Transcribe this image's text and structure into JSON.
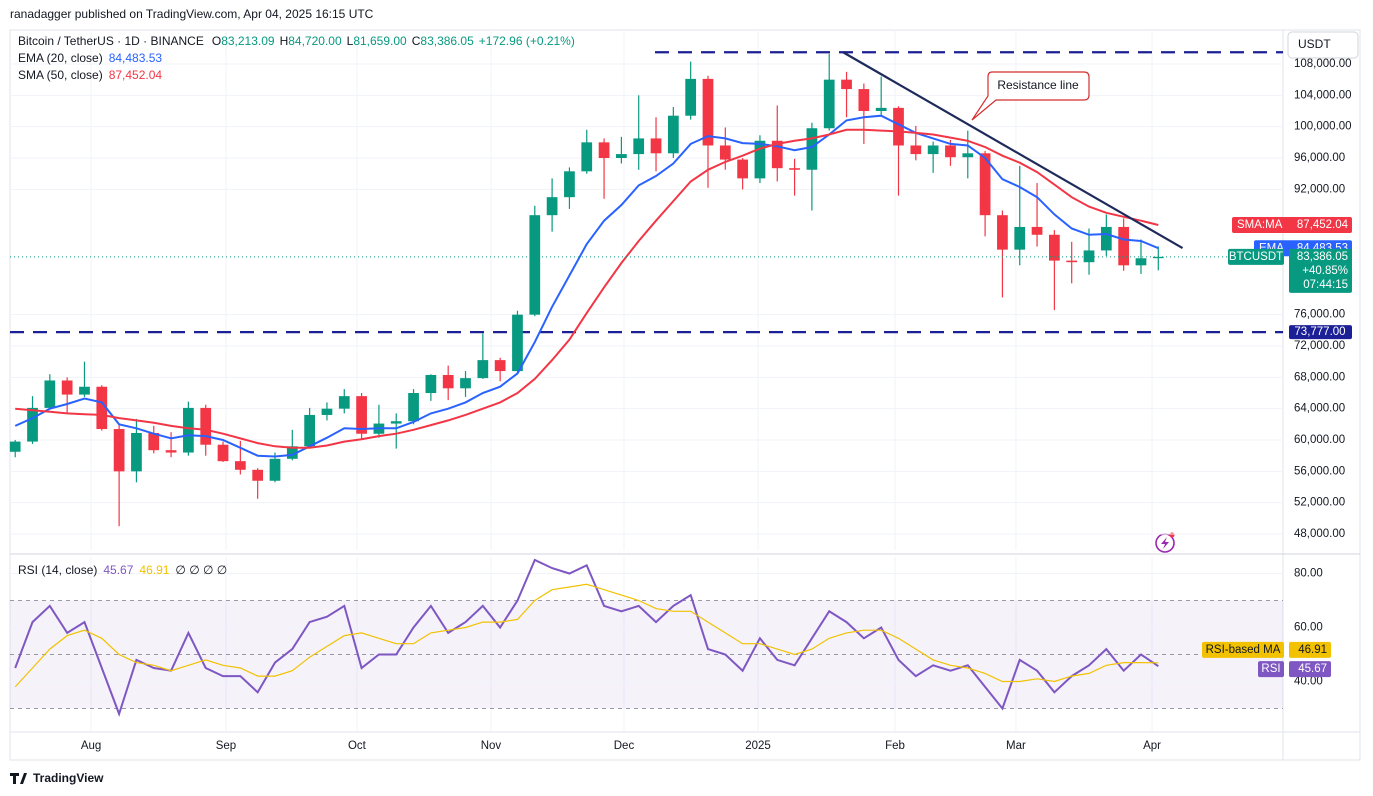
{
  "attribution": "ranadagger published on TradingView.com, Apr 04, 2025 16:15 UTC",
  "footer": {
    "brand": "TradingView"
  },
  "chart_data": [
    {
      "type": "candlestick",
      "title": "Bitcoin / TetherUS · 1D · BINANCE",
      "ohlc": [
        {
          "key": "O",
          "value": "83,213.09"
        },
        {
          "key": "H",
          "value": "84,720.00"
        },
        {
          "key": "L",
          "value": "81,659.00"
        },
        {
          "key": "C",
          "value": "83,386.05"
        }
      ],
      "change": "+172.96 (+0.21%)",
      "currency": "USDT",
      "colors": {
        "up": "#089981",
        "down": "#f23645"
      },
      "open": [
        58500,
        59800,
        64100,
        67600,
        65800,
        66800,
        61400,
        56000,
        60900,
        58700,
        58400,
        64100,
        59400,
        57300,
        56200,
        54800,
        57600,
        59200,
        63200,
        64000,
        65600,
        60800,
        62100,
        62400,
        66000,
        68300,
        66600,
        67900,
        70200,
        68800,
        76000,
        88700,
        91000,
        94300,
        98000,
        96000,
        96500,
        98500,
        96600,
        101400,
        106100,
        97600,
        95800,
        93400,
        98200,
        94700,
        94500,
        99800,
        106000,
        104800,
        102000,
        102400,
        97600,
        96500,
        97600,
        96100,
        96600,
        88700,
        84300,
        87200,
        86200,
        82900,
        82700,
        84200,
        87200,
        82300,
        83213.09
      ],
      "high": [
        60000,
        65600,
        68400,
        68000,
        70000,
        67000,
        62000,
        62700,
        61800,
        61000,
        64900,
        64500,
        59800,
        59900,
        56400,
        58400,
        61300,
        64100,
        64800,
        66500,
        66000,
        64500,
        63400,
        66500,
        68400,
        69500,
        68800,
        73600,
        70500,
        76500,
        89900,
        93400,
        94800,
        99600,
        98500,
        98700,
        104000,
        101200,
        102500,
        108300,
        106500,
        99900,
        96000,
        98900,
        102700,
        95900,
        100500,
        109300,
        107000,
        105500,
        106400,
        102600,
        100100,
        98100,
        98300,
        99500,
        96900,
        89300,
        95000,
        92800,
        86800,
        85300,
        87000,
        88800,
        88300,
        85600,
        84720
      ],
      "low": [
        57800,
        59500,
        63900,
        63500,
        65500,
        61200,
        49000,
        54600,
        58300,
        57800,
        58000,
        58000,
        57200,
        55600,
        52500,
        54600,
        57400,
        59000,
        62500,
        63400,
        60100,
        60300,
        58900,
        62000,
        65000,
        65100,
        65500,
        67800,
        67500,
        68500,
        75800,
        86600,
        89500,
        94000,
        90800,
        95300,
        94500,
        94300,
        96000,
        100900,
        92200,
        94500,
        92000,
        92800,
        93000,
        91200,
        89300,
        99500,
        101200,
        97800,
        101400,
        91200,
        95700,
        94100,
        95000,
        93400,
        86000,
        78200,
        82300,
        84700,
        76600,
        80000,
        81100,
        83500,
        81600,
        81200,
        81659
      ],
      "close": [
        59800,
        64100,
        67600,
        65800,
        66800,
        61400,
        56000,
        60900,
        58700,
        58400,
        64100,
        59400,
        57300,
        56200,
        54800,
        57600,
        59200,
        63200,
        64000,
        65600,
        60800,
        62100,
        62400,
        66000,
        68300,
        66600,
        67900,
        70200,
        68800,
        76000,
        88700,
        91000,
        94300,
        98000,
        96000,
        96500,
        98500,
        96600,
        101400,
        106100,
        97600,
        95800,
        93400,
        98200,
        94700,
        94500,
        99800,
        106000,
        104800,
        102000,
        102400,
        97600,
        96500,
        97600,
        96100,
        96600,
        88700,
        84300,
        87200,
        86200,
        82900,
        82700,
        84200,
        87200,
        82300,
        83200,
        83386.05
      ],
      "series": [
        {
          "name": "EMA (20, close)",
          "tag": "EMA",
          "value_label": "84,483.53",
          "color": "#2962ff",
          "values": [
            61800,
            62800,
            64000,
            64600,
            65300,
            64800,
            62000,
            61500,
            60800,
            60200,
            60600,
            60500,
            60000,
            59000,
            58000,
            57900,
            58100,
            59200,
            60300,
            61500,
            61400,
            61500,
            61500,
            62300,
            63400,
            64000,
            64800,
            66000,
            66800,
            68500,
            72500,
            77000,
            81000,
            85000,
            88000,
            90000,
            92500,
            93700,
            95300,
            97800,
            98800,
            98500,
            97900,
            97800,
            97500,
            97000,
            97400,
            99000,
            100800,
            101200,
            101400,
            100300,
            99200,
            98500,
            97800,
            97600,
            96000,
            93300,
            92300,
            91000,
            88800,
            87000,
            86200,
            86300,
            85600,
            85400,
            84483.53
          ]
        },
        {
          "name": "SMA (50, close)",
          "tag": "SMA:MA",
          "value_label": "87,452.04",
          "color": "#f23645",
          "values": [
            64000,
            63800,
            63600,
            63400,
            63300,
            63200,
            62800,
            62500,
            62200,
            61800,
            61500,
            61300,
            60800,
            60200,
            59600,
            59200,
            59000,
            59000,
            59300,
            59800,
            60100,
            60500,
            60800,
            61300,
            61900,
            62500,
            63200,
            64000,
            64800,
            66000,
            67800,
            70200,
            72800,
            76200,
            79500,
            82600,
            85400,
            88000,
            90500,
            93000,
            94500,
            95500,
            96300,
            97200,
            97800,
            98200,
            98500,
            99000,
            99600,
            99600,
            99500,
            99400,
            99200,
            99000,
            98600,
            98200,
            97400,
            96300,
            95400,
            94200,
            92600,
            91000,
            89800,
            89000,
            88500,
            88000,
            87452.04
          ]
        }
      ],
      "last": {
        "tag": "BTCUSDT",
        "value": 83386.05,
        "value_label": "83,386.05",
        "change": "+40.85%",
        "countdown": "07:44:15",
        "color": "#089981"
      },
      "levels": [
        {
          "value": 73777,
          "label": "73,777.00"
        },
        {
          "value": 109500
        }
      ],
      "levels_color": "#1c2096",
      "trendline": {
        "label": "Resistance line",
        "color": "#1e2a5a",
        "label_color": "#d32f2f",
        "points": [
          [
            47.8,
            109500
          ],
          [
            67.4,
            84500
          ]
        ]
      },
      "xlim": [
        -0.3,
        73.2
      ],
      "xticks": [
        {
          "value": 4.38,
          "label": "Aug"
        },
        {
          "value": 12.17,
          "label": "Sep"
        },
        {
          "value": 19.73,
          "label": "Oct"
        },
        {
          "value": 27.47,
          "label": "Nov"
        },
        {
          "value": 35.15,
          "label": "Dec"
        },
        {
          "value": 42.89,
          "label": "2025"
        },
        {
          "value": 50.8,
          "label": "Feb"
        },
        {
          "value": 57.78,
          "label": "Mar"
        },
        {
          "value": 65.64,
          "label": "Apr"
        }
      ],
      "ylim": [
        45960,
        112340
      ],
      "yticks": [
        {
          "value": 48000,
          "label": "48,000.00"
        },
        {
          "value": 52000,
          "label": "52,000.00"
        },
        {
          "value": 56000,
          "label": "56,000.00"
        },
        {
          "value": 60000,
          "label": "60,000.00"
        },
        {
          "value": 64000,
          "label": "64,000.00"
        },
        {
          "value": 68000,
          "label": "68,000.00"
        },
        {
          "value": 72000,
          "label": "72,000.00"
        },
        {
          "value": 76000,
          "label": "76,000.00"
        },
        {
          "value": 92000,
          "label": "92,000.00"
        },
        {
          "value": 96000,
          "label": "96,000.00"
        },
        {
          "value": 100000,
          "label": "100,000.00"
        },
        {
          "value": 104000,
          "label": "104,000.00"
        },
        {
          "value": 108000,
          "label": "108,000.00"
        }
      ],
      "grid": true
    },
    {
      "type": "line",
      "title": "RSI (14, close)",
      "extra": "∅ ∅ ∅ ∅",
      "series": [
        {
          "name": "RSI",
          "value_label": "45.67",
          "color": "#7e57c2",
          "values": [
            45,
            62,
            68,
            58,
            62,
            45,
            28,
            48,
            45,
            44,
            58,
            45,
            42,
            42,
            36,
            47,
            52,
            62,
            64,
            68,
            45,
            50,
            50,
            60,
            68,
            58,
            62,
            68,
            60,
            70,
            85,
            82,
            80,
            83,
            68,
            66,
            68,
            62,
            68,
            72,
            52,
            50,
            44,
            56,
            48,
            46,
            56,
            66,
            62,
            56,
            60,
            48,
            42,
            46,
            44,
            46,
            38,
            30,
            48,
            44,
            36,
            42,
            46,
            52,
            44,
            50,
            45.67
          ]
        },
        {
          "name": "RSI-based MA",
          "value_label": "46.91",
          "color": "#f2c200",
          "values": [
            38,
            45,
            52,
            57,
            59,
            56,
            50,
            47,
            46,
            44,
            46,
            48,
            46,
            45,
            42,
            42,
            44,
            49,
            53,
            57,
            58,
            56,
            54,
            54,
            58,
            59,
            60,
            62,
            62,
            63,
            70,
            74,
            75,
            76,
            74,
            72,
            70,
            67,
            66,
            66,
            62,
            58,
            54,
            54,
            52,
            50,
            52,
            56,
            58,
            59,
            59,
            56,
            52,
            48,
            46,
            45,
            43,
            40,
            40,
            41,
            40,
            42,
            43,
            46,
            47,
            47,
            46.91
          ]
        }
      ],
      "ylim": [
        21.3,
        86.1
      ],
      "yticks": [
        {
          "value": 40,
          "label": "40.00"
        },
        {
          "value": 60,
          "label": "60.00"
        },
        {
          "value": 80,
          "label": "80.00"
        }
      ],
      "bands": [
        30,
        70
      ],
      "midline": 50,
      "grid": true
    }
  ]
}
